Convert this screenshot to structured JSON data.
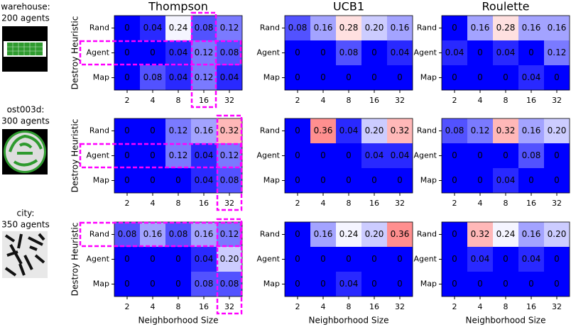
{
  "panels": [
    {
      "label_lines": [
        "warehouse:",
        "200 agents"
      ]
    },
    {
      "label_lines": [
        "ost003d:",
        "300 agents"
      ]
    },
    {
      "label_lines": [
        "city:",
        "350 agents"
      ]
    }
  ],
  "chart_data": [
    {
      "type": "heatmap",
      "title": "Thompson",
      "ylabel": "Destroy Heuristic",
      "categories": [
        2,
        4,
        8,
        16,
        32
      ],
      "rows": [
        "Rand",
        "Agent",
        "Map"
      ],
      "colormap": "bwr",
      "vmin": 0,
      "vmax": 0.5,
      "highlight_rows": [
        1
      ],
      "highlight_cols": [
        3
      ],
      "values": [
        [
          0,
          0.04,
          0.24,
          0.08,
          0.12
        ],
        [
          0,
          0,
          0.04,
          0.12,
          0.08
        ],
        [
          0,
          0.08,
          0.04,
          0.12,
          0.04
        ]
      ]
    },
    {
      "type": "heatmap",
      "title": "UCB1",
      "categories": [
        2,
        4,
        8,
        16,
        32
      ],
      "rows": [
        "Rand",
        "Agent",
        "Map"
      ],
      "colormap": "bwr",
      "vmin": 0,
      "vmax": 0.5,
      "values": [
        [
          0.08,
          0.16,
          0.28,
          0.2,
          0.16
        ],
        [
          0,
          0,
          0.08,
          0,
          0.04
        ],
        [
          0,
          0,
          0,
          0,
          0
        ]
      ],
      "value_labels": [
        [
          "0.08",
          "0.16",
          "0.28",
          "0.20",
          "0.16"
        ],
        [
          "0",
          "0",
          "0.08",
          "0",
          "0.04"
        ],
        [
          "0",
          "0",
          "0",
          "0",
          "0"
        ]
      ]
    },
    {
      "type": "heatmap",
      "title": "Roulette",
      "categories": [
        2,
        4,
        8,
        16,
        32
      ],
      "rows": [
        "Rand",
        "Agent",
        "Map"
      ],
      "colormap": "bwr",
      "vmin": 0,
      "vmax": 0.5,
      "values": [
        [
          0,
          0.16,
          0.28,
          0.16,
          0.16
        ],
        [
          0.04,
          0,
          0.04,
          0,
          0.12
        ],
        [
          0,
          0,
          0,
          0.04,
          0
        ]
      ]
    },
    {
      "type": "heatmap",
      "ylabel": "Destroy Heuristic",
      "categories": [
        2,
        4,
        8,
        16,
        32
      ],
      "rows": [
        "Rand",
        "Agent",
        "Map"
      ],
      "colormap": "bwr",
      "vmin": 0,
      "vmax": 0.5,
      "highlight_rows": [
        1
      ],
      "highlight_cols": [
        4
      ],
      "values": [
        [
          0,
          0,
          0.12,
          0.16,
          0.32
        ],
        [
          0,
          0,
          0.12,
          0.04,
          0.12
        ],
        [
          0,
          0,
          0,
          0.04,
          0.08
        ]
      ]
    },
    {
      "type": "heatmap",
      "categories": [
        2,
        4,
        8,
        16,
        32
      ],
      "rows": [
        "Rand",
        "Agent",
        "Map"
      ],
      "colormap": "bwr",
      "vmin": 0,
      "vmax": 0.5,
      "values": [
        [
          0,
          0.36,
          0.04,
          0.2,
          0.32
        ],
        [
          0,
          0,
          0,
          0.04,
          0.04
        ],
        [
          0,
          0,
          0,
          0,
          0
        ]
      ],
      "value_labels": [
        [
          "0",
          "0.36",
          "0.04",
          "0.20",
          "0.32"
        ],
        [
          "0",
          "0",
          "0",
          "0.04",
          "0.04"
        ],
        [
          "0",
          "0",
          "0",
          "0",
          "0"
        ]
      ]
    },
    {
      "type": "heatmap",
      "categories": [
        2,
        4,
        8,
        16,
        32
      ],
      "rows": [
        "Rand",
        "Agent",
        "Map"
      ],
      "colormap": "bwr",
      "vmin": 0,
      "vmax": 0.5,
      "values": [
        [
          0.08,
          0.12,
          0.32,
          0.16,
          0.2
        ],
        [
          0,
          0,
          0,
          0.08,
          0
        ],
        [
          0,
          0,
          0.04,
          0,
          0
        ]
      ],
      "value_labels": [
        [
          "0.08",
          "0.12",
          "0.32",
          "0.16",
          "0.20"
        ],
        [
          "0",
          "0",
          "0",
          "0.08",
          "0"
        ],
        [
          "0",
          "0",
          "0.04",
          "0",
          "0"
        ]
      ]
    },
    {
      "type": "heatmap",
      "ylabel": "Destroy Heuristic",
      "xlabel": "Neighborhood Size",
      "categories": [
        2,
        4,
        8,
        16,
        32
      ],
      "rows": [
        "Rand",
        "Agent",
        "Map"
      ],
      "colormap": "bwr",
      "vmin": 0,
      "vmax": 0.5,
      "highlight_rows": [
        0
      ],
      "highlight_cols": [
        4
      ],
      "values": [
        [
          0.08,
          0.16,
          0.08,
          0.16,
          0.12
        ],
        [
          0,
          0,
          0,
          0.04,
          0.2
        ],
        [
          0,
          0,
          0,
          0.08,
          0.08
        ]
      ],
      "value_labels": [
        [
          "0.08",
          "0.16",
          "0.08",
          "0.16",
          "0.12"
        ],
        [
          "0",
          "0",
          "0",
          "0.04",
          "0.20"
        ],
        [
          "0",
          "0",
          "0",
          "0.08",
          "0.08"
        ]
      ]
    },
    {
      "type": "heatmap",
      "xlabel": "Neighborhood Size",
      "categories": [
        2,
        4,
        8,
        16,
        32
      ],
      "rows": [
        "Rand",
        "Agent",
        "Map"
      ],
      "colormap": "bwr",
      "vmin": 0,
      "vmax": 0.5,
      "values": [
        [
          0,
          0.16,
          0.24,
          0.2,
          0.36
        ],
        [
          0,
          0,
          0,
          0,
          0
        ],
        [
          0,
          0,
          0.04,
          0,
          0
        ]
      ],
      "value_labels": [
        [
          "0",
          "0.16",
          "0.24",
          "0.20",
          "0.36"
        ],
        [
          "0",
          "0",
          "0",
          "0",
          "0"
        ],
        [
          "0",
          "0",
          "0.04",
          "0",
          "0"
        ]
      ]
    },
    {
      "type": "heatmap",
      "xlabel": "Neighborhood Size",
      "categories": [
        2,
        4,
        8,
        16,
        32
      ],
      "rows": [
        "Rand",
        "Agent",
        "Map"
      ],
      "colormap": "bwr",
      "vmin": 0,
      "vmax": 0.5,
      "values": [
        [
          0,
          0.32,
          0.24,
          0.16,
          0.2
        ],
        [
          0,
          0.04,
          0,
          0.04,
          0
        ],
        [
          0,
          0,
          0,
          0,
          0
        ]
      ],
      "value_labels": [
        [
          "0",
          "0.32",
          "0.24",
          "0.16",
          "0.20"
        ],
        [
          "0",
          "0.04",
          "0",
          "0.04",
          "0"
        ],
        [
          "0",
          "0",
          "0",
          "0",
          "0"
        ]
      ]
    }
  ]
}
